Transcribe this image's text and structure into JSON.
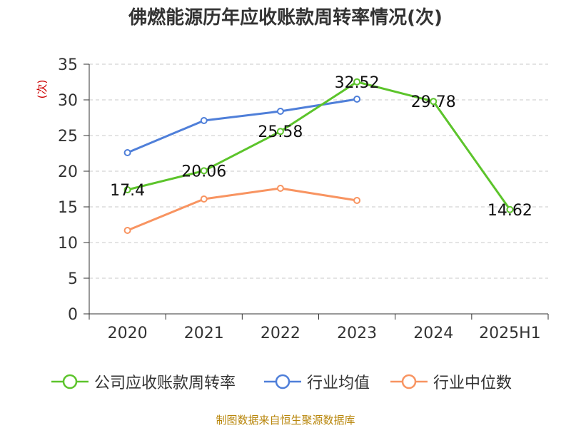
{
  "title": "佛燃能源历年应收账款周转率情况(次)",
  "source": "制图数据来自恒生聚源数据库",
  "chart_data": {
    "type": "line",
    "title": "佛燃能源历年应收账款周转率情况(次)",
    "ylabel": "(次)",
    "xlabel": "",
    "categories": [
      "2020",
      "2021",
      "2022",
      "2023",
      "2024",
      "2025H1"
    ],
    "ylim": [
      0,
      35
    ],
    "yticks": [
      0,
      5,
      10,
      15,
      20,
      25,
      30,
      35
    ],
    "grid": true,
    "legend_position": "bottom",
    "series": [
      {
        "name": "公司应收账款周转率",
        "values": [
          17.4,
          20.06,
          25.58,
          32.52,
          29.78,
          14.62
        ],
        "labels": [
          "17.4",
          "20.06",
          "25.58",
          "32.52",
          "29.78",
          "14.62"
        ],
        "color": "#5cc42b"
      },
      {
        "name": "行业均值",
        "values": [
          22.6,
          27.1,
          28.4,
          30.1,
          null,
          null
        ],
        "color": "#4f7fd9"
      },
      {
        "name": "行业中位数",
        "values": [
          11.7,
          16.1,
          17.6,
          15.9,
          null,
          null
        ],
        "color": "#f89461"
      }
    ]
  }
}
